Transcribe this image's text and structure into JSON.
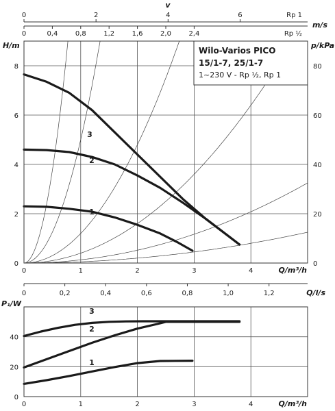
{
  "chart_data": [
    {
      "type": "line",
      "panel": "pump-curve",
      "title_lines": [
        "Wilo-Varios PICO",
        "15/1-7, 25/1-7"
      ],
      "subtitle": "1~230 V - Rp ½, Rp 1",
      "xlabel": "Q/m³/h",
      "ylabel": "H/m",
      "y2label": "p/kPa",
      "xlim": [
        0,
        5
      ],
      "ylim": [
        0,
        9
      ],
      "y2lim": [
        0,
        90
      ],
      "xticks": [
        "0",
        "1",
        "2",
        "3",
        "4"
      ],
      "yticks": [
        "0",
        "2",
        "4",
        "6",
        "8"
      ],
      "y2ticks": [
        "0",
        "20",
        "40",
        "60",
        "80"
      ],
      "top_axes": [
        {
          "label": "v",
          "unit": "m/s",
          "pipe": "Rp 1",
          "ticks": [
            {
              "label": "0",
              "q": 0
            },
            {
              "label": "2",
              "q": 1.27
            },
            {
              "label": "4",
              "q": 2.54
            },
            {
              "label": "6",
              "q": 3.81
            }
          ]
        },
        {
          "unit": "m/s",
          "pipe": "Rp ½",
          "ticks": [
            {
              "label": "0",
              "q": 0
            },
            {
              "label": "0,4",
              "q": 0.5
            },
            {
              "label": "0,8",
              "q": 1.0
            },
            {
              "label": "1,2",
              "q": 1.5
            },
            {
              "label": "1,6",
              "q": 2.0
            },
            {
              "label": "2,0",
              "q": 2.5
            },
            {
              "label": "2,4",
              "q": 3.0
            }
          ]
        }
      ],
      "series": [
        {
          "name": "3",
          "x": [
            0,
            0.4,
            0.8,
            1.2,
            1.6,
            2.0,
            2.4,
            2.8,
            3.2,
            3.6,
            3.8
          ],
          "y": [
            7.65,
            7.35,
            6.9,
            6.2,
            5.3,
            4.4,
            3.5,
            2.6,
            1.8,
            1.1,
            0.75
          ]
        },
        {
          "name": "2",
          "x": [
            0,
            0.4,
            0.8,
            1.2,
            1.6,
            2.0,
            2.4,
            2.8,
            3.2,
            3.6,
            3.8
          ],
          "y": [
            4.6,
            4.58,
            4.5,
            4.3,
            4.0,
            3.55,
            3.05,
            2.45,
            1.8,
            1.1,
            0.75
          ]
        },
        {
          "name": "1",
          "x": [
            0,
            0.4,
            0.8,
            1.2,
            1.6,
            2.0,
            2.4,
            2.7,
            2.97
          ],
          "y": [
            2.3,
            2.28,
            2.2,
            2.08,
            1.85,
            1.55,
            1.2,
            0.85,
            0.5
          ]
        }
      ],
      "system_curves": [
        5,
        13,
        40,
        120,
        500,
        1500
      ]
    },
    {
      "type": "line",
      "panel": "power-curve",
      "xlabel": "Q/m³/h",
      "ylabel": "P₁/W",
      "top_label": "Q/l/s",
      "xlim": [
        0,
        5
      ],
      "ylim": [
        0,
        60
      ],
      "xticks": [
        "0",
        "1",
        "2",
        "3",
        "4"
      ],
      "yticks": [
        "0",
        "20",
        "40"
      ],
      "top_ticks": [
        "0",
        "0,2",
        "0,4",
        "0,6",
        "0,8",
        "1,0",
        "1,2"
      ],
      "series": [
        {
          "name": "3",
          "x": [
            0,
            0.3,
            0.6,
            0.9,
            1.2,
            1.5,
            1.8,
            2.1,
            2.4,
            3.0,
            3.8
          ],
          "y": [
            40.5,
            43.5,
            46.0,
            48.0,
            49.3,
            50.0,
            50.3,
            50.4,
            50.4,
            50.4,
            50.4
          ]
        },
        {
          "name": "2",
          "x": [
            0,
            0.4,
            0.8,
            1.2,
            1.6,
            2.0,
            2.4,
            2.5,
            3.0,
            3.8
          ],
          "y": [
            19.5,
            25.0,
            30.5,
            36.0,
            41.0,
            45.5,
            49.0,
            50.0,
            50.0,
            50.0
          ]
        },
        {
          "name": "1",
          "x": [
            0,
            0.4,
            0.8,
            1.2,
            1.6,
            2.0,
            2.4,
            2.97
          ],
          "y": [
            8.5,
            11.0,
            13.8,
            16.8,
            19.8,
            22.4,
            23.8,
            24.0
          ]
        }
      ]
    }
  ]
}
